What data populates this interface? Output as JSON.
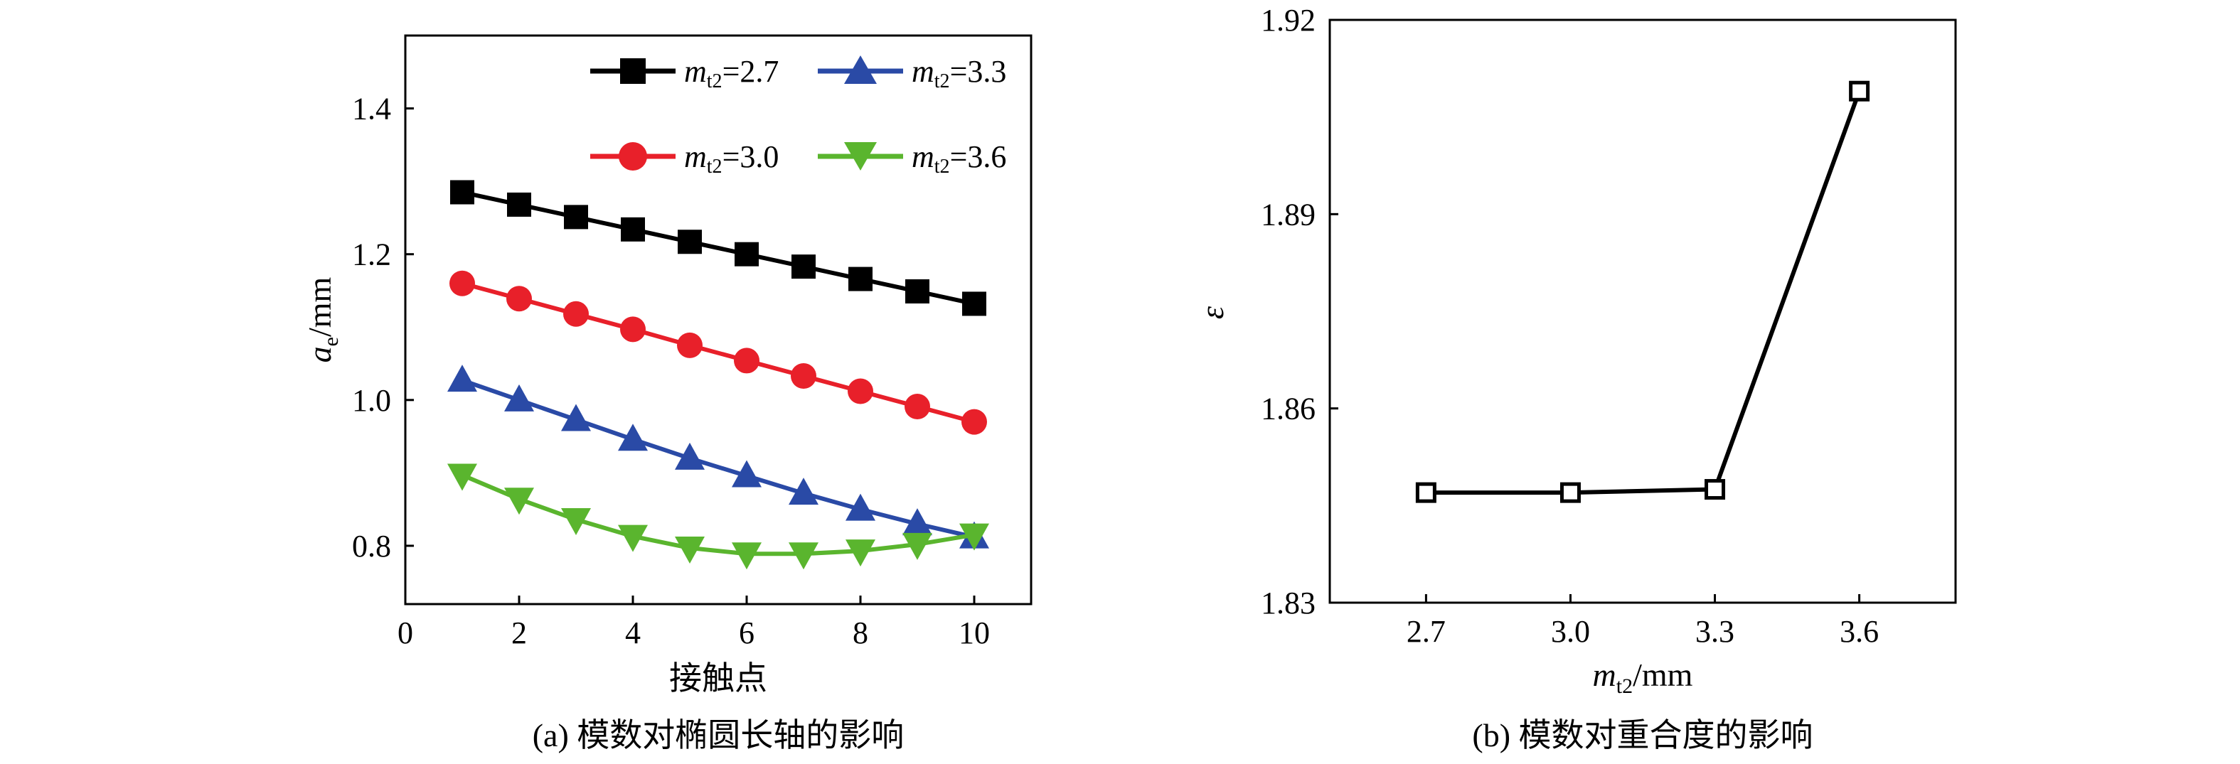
{
  "chart_data": [
    {
      "type": "line",
      "caption": "(a) 模数对椭圆长轴的影响",
      "xlabel": "接触点",
      "ylabel": {
        "main": "a",
        "sub": "e",
        "unit": "/mm"
      },
      "xlim": [
        0,
        11
      ],
      "ylim": [
        0.72,
        1.5
      ],
      "xticks": [
        0,
        2,
        4,
        6,
        8,
        10
      ],
      "xtick_labels": [
        "0",
        "2",
        "4",
        "6",
        "8",
        "10"
      ],
      "yticks": [
        0.8,
        1.0,
        1.2,
        1.4
      ],
      "ytick_labels": [
        "0.8",
        "1.0",
        "1.2",
        "1.4"
      ],
      "x": [
        1,
        2,
        3,
        4,
        5,
        6,
        7,
        8,
        9,
        10
      ],
      "series": [
        {
          "name": "mt2=2.7",
          "label_main": "m",
          "label_sub": "t2",
          "label_value": "=2.7",
          "color": "#000000",
          "marker": "square",
          "values": [
            1.285,
            1.268,
            1.251,
            1.234,
            1.217,
            1.2,
            1.183,
            1.166,
            1.149,
            1.132
          ]
        },
        {
          "name": "mt2=3.3",
          "label_main": "m",
          "label_sub": "t2",
          "label_value": "=3.3",
          "color": "#2a4aa6",
          "marker": "triangle-up",
          "values": [
            1.027,
            1.0,
            0.973,
            0.946,
            0.92,
            0.896,
            0.872,
            0.85,
            0.83,
            0.812
          ]
        },
        {
          "name": "mt2=3.0",
          "label_main": "m",
          "label_sub": "t2",
          "label_value": "=3.0",
          "color": "#e8202a",
          "marker": "circle",
          "values": [
            1.16,
            1.139,
            1.118,
            1.097,
            1.075,
            1.054,
            1.033,
            1.012,
            0.991,
            0.97
          ]
        },
        {
          "name": "mt2=3.6",
          "label_main": "m",
          "label_sub": "t2",
          "label_value": "=3.6",
          "color": "#5ab52e",
          "marker": "triangle-down",
          "values": [
            0.897,
            0.864,
            0.836,
            0.813,
            0.797,
            0.789,
            0.789,
            0.793,
            0.802,
            0.815
          ]
        }
      ],
      "legend_position": "top-right"
    },
    {
      "type": "line",
      "caption": "(b) 模数对重合度的影响",
      "xlabel": {
        "main": "m",
        "sub": "t2",
        "unit": "/mm"
      },
      "ylabel": "ε",
      "xlim": [
        2.5,
        3.8
      ],
      "ylim": [
        1.83,
        1.92
      ],
      "xticks": [
        2.7,
        3.0,
        3.3,
        3.6
      ],
      "xtick_labels": [
        "2.7",
        "3.0",
        "3.3",
        "3.6"
      ],
      "yticks": [
        1.83,
        1.86,
        1.89,
        1.92
      ],
      "ytick_labels": [
        "1.83",
        "1.86",
        "1.89",
        "1.92"
      ],
      "series": [
        {
          "name": "ε",
          "color": "#000000",
          "marker": "square-open",
          "x": [
            2.7,
            3.0,
            3.3,
            3.6
          ],
          "values": [
            1.847,
            1.847,
            1.8475,
            1.909
          ]
        }
      ]
    }
  ]
}
